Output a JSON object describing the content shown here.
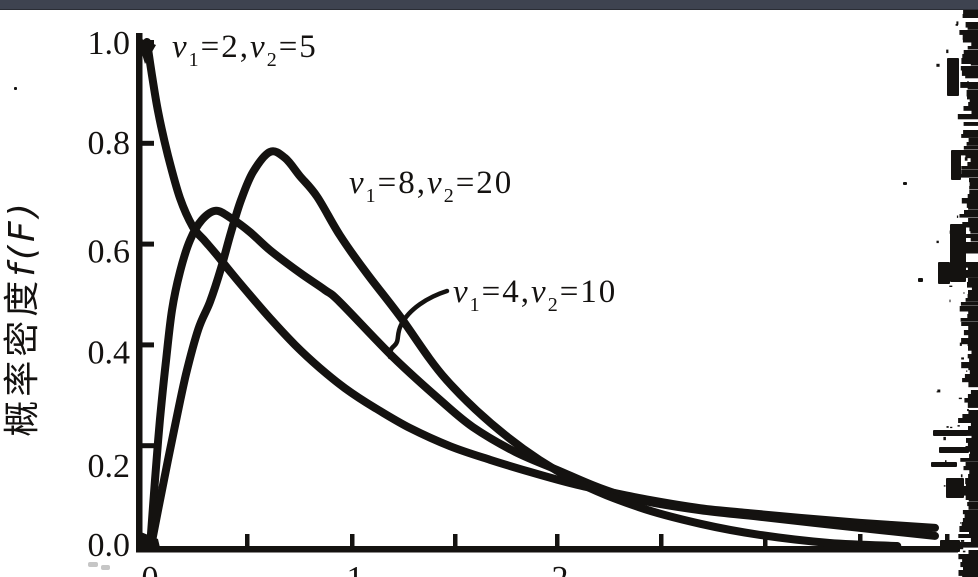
{
  "figure": {
    "colors": {
      "ink": "#141210",
      "paper": "#ffffff",
      "scan_band": "#3e4350",
      "faint_mark": "#c6c6c6"
    },
    "y_axis": {
      "title_segments": [
        {
          "t": "概率密度"
        },
        {
          "t": "f(F)",
          "it": true
        }
      ],
      "tick_labels": [
        "1.0",
        "0.8",
        "0.6",
        "0.4",
        "0.2",
        "0.0"
      ],
      "tick_values": [
        1.0,
        0.8,
        0.6,
        0.4,
        0.2,
        0.0
      ]
    },
    "x_axis": {
      "visible_tick_labels": [
        {
          "label": "0",
          "F": 0
        },
        {
          "label": "1",
          "F": 1
        },
        {
          "label": "2",
          "F": 2
        }
      ]
    },
    "curve_labels": {
      "c25": {
        "segments": [
          {
            "t": "v",
            "it": true
          },
          {
            "t": "1",
            "sub": true
          },
          {
            "t": "=2,"
          },
          {
            "t": "v",
            "it": true
          },
          {
            "t": "2",
            "sub": true
          },
          {
            "t": "=5"
          }
        ]
      },
      "c820": {
        "segments": [
          {
            "t": "v",
            "it": true
          },
          {
            "t": "1",
            "sub": true
          },
          {
            "t": "=8,"
          },
          {
            "t": "v",
            "it": true
          },
          {
            "t": "2",
            "sub": true
          },
          {
            "t": "=20"
          }
        ]
      },
      "c410": {
        "segments": [
          {
            "t": "v",
            "it": true
          },
          {
            "t": "1",
            "sub": true
          },
          {
            "t": "=4,"
          },
          {
            "t": "v",
            "it": true
          },
          {
            "t": "2",
            "sub": true
          },
          {
            "t": "=10"
          }
        ]
      }
    }
  },
  "chart_data": {
    "type": "line",
    "title": "",
    "xlabel": "",
    "ylabel": "概率密度 f(F)",
    "xlim": [
      0,
      4.1
    ],
    "ylim": [
      0,
      1.05
    ],
    "grid": false,
    "legend_position": "inline annotations on curves",
    "x_tick_values": [
      0.5,
      1,
      1.5,
      2,
      2.5,
      3,
      3.5,
      4
    ],
    "x_tick_labels_visible": [
      "0",
      "1",
      "2"
    ],
    "y_tick_values": [
      0,
      0.2,
      0.4,
      0.6,
      0.8,
      1.0
    ],
    "series": [
      {
        "name": "v1=2, v2=5",
        "points": [
          [
            0,
            1.0
          ],
          [
            0.024,
            0.935
          ],
          [
            0.054,
            0.862
          ],
          [
            0.102,
            0.775
          ],
          [
            0.161,
            0.69
          ],
          [
            0.224,
            0.633
          ],
          [
            0.283,
            0.605
          ],
          [
            0.346,
            0.575
          ],
          [
            0.415,
            0.54
          ],
          [
            0.502,
            0.498
          ],
          [
            0.6,
            0.452
          ],
          [
            0.722,
            0.399
          ],
          [
            0.844,
            0.353
          ],
          [
            0.966,
            0.313
          ],
          [
            1.112,
            0.274
          ],
          [
            1.283,
            0.234
          ],
          [
            1.478,
            0.198
          ],
          [
            1.673,
            0.171
          ],
          [
            1.868,
            0.147
          ],
          [
            2.063,
            0.125
          ],
          [
            2.259,
            0.107
          ],
          [
            2.454,
            0.091
          ],
          [
            2.698,
            0.075
          ],
          [
            2.941,
            0.065
          ],
          [
            3.185,
            0.056
          ],
          [
            3.478,
            0.046
          ],
          [
            3.844,
            0.036
          ]
        ]
      },
      {
        "name": "v1=4, v2=10",
        "points": [
          [
            0.015,
            0
          ],
          [
            0.039,
            0.131
          ],
          [
            0.063,
            0.25
          ],
          [
            0.093,
            0.369
          ],
          [
            0.122,
            0.468
          ],
          [
            0.161,
            0.544
          ],
          [
            0.21,
            0.607
          ],
          [
            0.268,
            0.647
          ],
          [
            0.337,
            0.665
          ],
          [
            0.415,
            0.649
          ],
          [
            0.502,
            0.623
          ],
          [
            0.6,
            0.587
          ],
          [
            0.746,
            0.542
          ],
          [
            0.868,
            0.508
          ],
          [
            0.941,
            0.484
          ],
          [
            1.2,
            0.375
          ],
          [
            1.429,
            0.29
          ],
          [
            1.59,
            0.236
          ],
          [
            1.795,
            0.187
          ],
          [
            2.0,
            0.151
          ],
          [
            2.21,
            0.115
          ],
          [
            2.405,
            0.091
          ],
          [
            2.698,
            0.071
          ],
          [
            2.99,
            0.058
          ],
          [
            3.429,
            0.038
          ],
          [
            3.844,
            0.02
          ]
        ]
      },
      {
        "name": "v1=8, v2=20",
        "points": [
          [
            0.02,
            0
          ],
          [
            0.073,
            0.111
          ],
          [
            0.132,
            0.23
          ],
          [
            0.19,
            0.34
          ],
          [
            0.25,
            0.43
          ],
          [
            0.307,
            0.484
          ],
          [
            0.361,
            0.551
          ],
          [
            0.41,
            0.623
          ],
          [
            0.459,
            0.687
          ],
          [
            0.517,
            0.742
          ],
          [
            0.6,
            0.782
          ],
          [
            0.673,
            0.77
          ],
          [
            0.746,
            0.734
          ],
          [
            0.83,
            0.693
          ],
          [
            0.94,
            0.617
          ],
          [
            1.07,
            0.542
          ],
          [
            1.23,
            0.458
          ],
          [
            1.46,
            0.33
          ],
          [
            1.76,
            0.216
          ],
          [
            2.08,
            0.131
          ],
          [
            2.4,
            0.077
          ],
          [
            2.7,
            0.044
          ],
          [
            2.99,
            0.022
          ],
          [
            3.33,
            0.006
          ],
          [
            3.66,
            0.0
          ]
        ]
      }
    ]
  }
}
